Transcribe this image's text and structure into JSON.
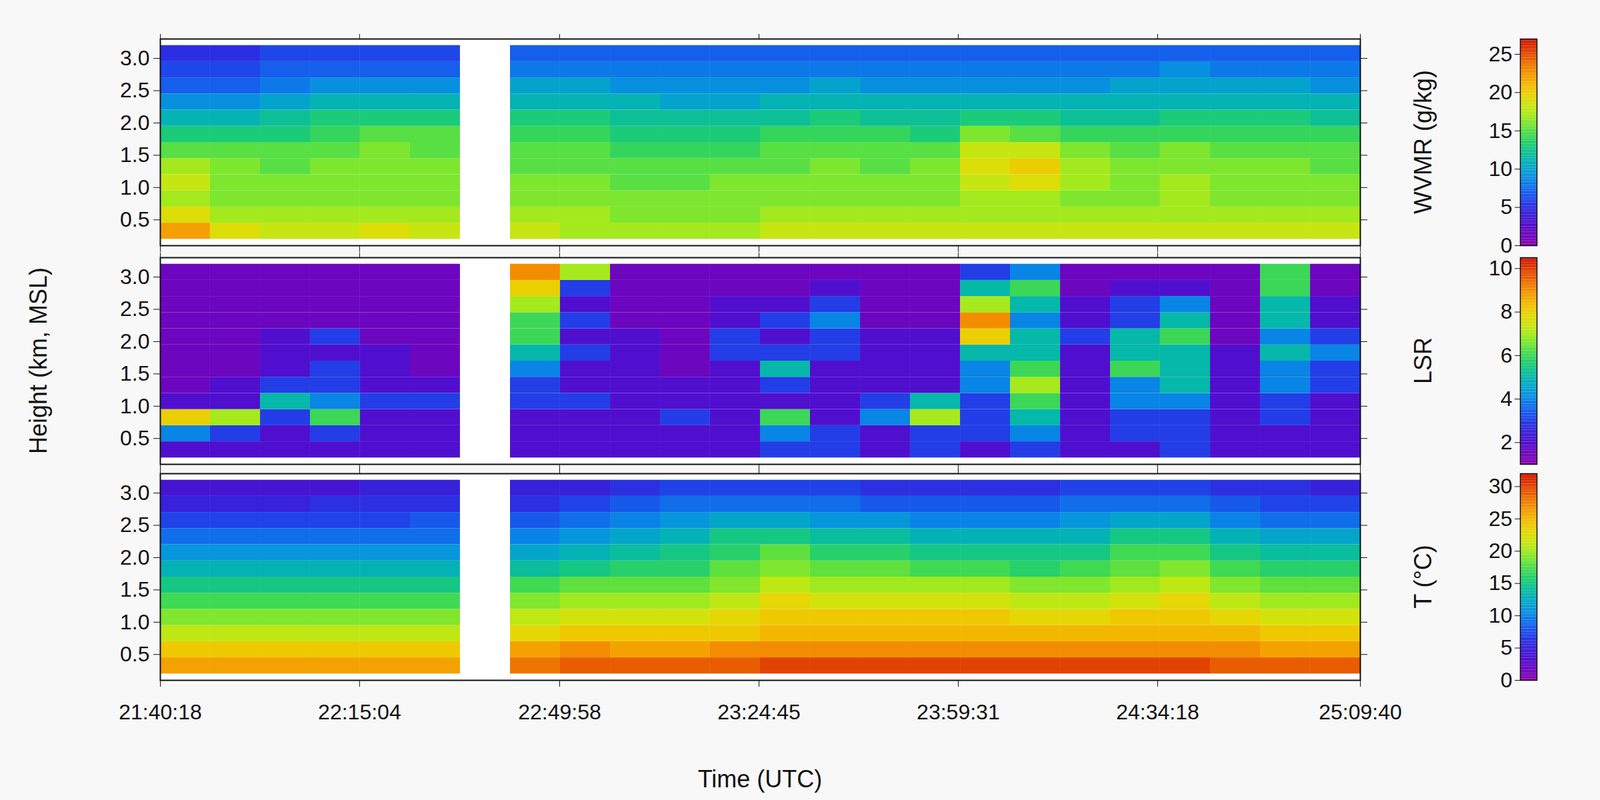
{
  "chart_data": [
    {
      "type": "heatmap",
      "tick_labels": "y",
      "xlim": [
        78018,
        90580
      ],
      "xticks": [
        {
          "value": 78018,
          "label": "21:40:18"
        },
        {
          "value": 80104,
          "label": "22:15:04"
        },
        {
          "value": 82198,
          "label": "22:49:58"
        },
        {
          "value": 84285,
          "label": "23:24:45"
        },
        {
          "value": 86371,
          "label": "23:59:31"
        },
        {
          "value": 88458,
          "label": "24:34:18"
        },
        {
          "value": 90580,
          "label": "25:09:40"
        }
      ],
      "ylim": [
        0.1,
        3.3
      ],
      "yticks": [
        0.5,
        {
          "value": 1,
          "label": "1.0"
        },
        1.5,
        {
          "value": 2,
          "label": "2.0"
        },
        2.5,
        {
          "value": 3,
          "label": "3.0"
        }
      ],
      "x_edges": [
        78018,
        78541,
        79065,
        79588,
        80111,
        80635,
        81158,
        81682,
        82205,
        82729,
        83252,
        83775,
        84299,
        84822,
        85346,
        85869,
        86393,
        86916,
        87440,
        87963,
        88486,
        89010,
        89533,
        90057,
        90580
      ],
      "y_edges": [
        0.2,
        0.45,
        0.7,
        0.95,
        1.2,
        1.45,
        1.7,
        1.95,
        2.2,
        2.45,
        2.7,
        2.95,
        3.2
      ],
      "cells": [
        [
          22,
          19,
          17,
          18,
          17,
          15,
          13,
          11,
          9,
          7,
          6,
          5
        ],
        [
          19,
          17,
          16,
          16,
          16,
          15,
          13,
          11,
          9,
          7,
          6,
          5
        ],
        [
          18,
          17,
          16,
          16,
          15,
          15,
          13,
          12,
          10,
          8,
          7,
          6
        ],
        [
          18,
          17,
          16,
          16,
          16,
          15,
          14,
          13,
          11,
          9,
          7,
          6
        ],
        [
          19,
          17,
          16,
          16,
          16,
          16,
          15,
          13,
          11,
          9,
          7,
          6
        ],
        [
          18,
          17,
          16,
          16,
          16,
          15,
          15,
          13,
          11,
          9,
          7,
          6
        ],
        [
          null,
          null,
          null,
          null,
          null,
          null,
          null,
          null,
          null,
          null,
          null,
          null
        ],
        [
          18,
          17,
          16,
          16,
          15,
          15,
          14,
          13,
          11,
          10,
          8,
          7
        ],
        [
          17,
          17,
          16,
          16,
          15,
          15,
          14,
          13,
          11,
          10,
          8,
          7
        ],
        [
          17,
          16,
          16,
          15,
          15,
          14,
          13,
          12,
          11,
          9,
          8,
          7
        ],
        [
          17,
          16,
          16,
          15,
          15,
          14,
          13,
          12,
          10,
          9,
          8,
          7
        ],
        [
          17,
          16,
          16,
          16,
          15,
          14,
          13,
          12,
          10,
          9,
          8,
          7
        ],
        [
          18,
          17,
          16,
          16,
          15,
          15,
          14,
          12,
          11,
          9,
          8,
          7
        ],
        [
          18,
          17,
          16,
          16,
          16,
          15,
          14,
          13,
          11,
          10,
          8,
          7
        ],
        [
          18,
          17,
          16,
          16,
          15,
          15,
          14,
          12,
          11,
          9,
          8,
          7
        ],
        [
          18,
          17,
          16,
          16,
          16,
          15,
          13,
          12,
          11,
          9,
          8,
          7
        ],
        [
          18,
          17,
          17,
          18,
          19,
          18,
          16,
          13,
          11,
          9,
          8,
          7
        ],
        [
          18,
          17,
          17,
          19,
          20,
          18,
          15,
          13,
          11,
          9,
          8,
          7
        ],
        [
          18,
          17,
          16,
          17,
          17,
          16,
          14,
          12,
          11,
          9,
          8,
          7
        ],
        [
          18,
          17,
          16,
          16,
          16,
          15,
          14,
          12,
          11,
          10,
          8,
          7
        ],
        [
          18,
          17,
          17,
          17,
          16,
          16,
          14,
          13,
          11,
          10,
          9,
          7
        ],
        [
          18,
          17,
          16,
          16,
          16,
          15,
          14,
          13,
          11,
          10,
          8,
          7
        ],
        [
          18,
          17,
          16,
          16,
          16,
          15,
          14,
          13,
          11,
          10,
          8,
          7
        ],
        [
          18,
          17,
          16,
          16,
          15,
          15,
          14,
          12,
          11,
          9,
          8,
          7
        ]
      ],
      "colorbar": {
        "label": "WVMR (g/kg)",
        "range": [
          0,
          27
        ],
        "ticks": [
          0,
          5,
          10,
          15,
          20,
          25
        ]
      }
    },
    {
      "type": "heatmap",
      "tick_labels": "y",
      "ylabel": "Height (km, MSL)",
      "xlim": [
        78018,
        90580
      ],
      "xticks": [
        {
          "value": 78018,
          "label": "21:40:18"
        },
        {
          "value": 80104,
          "label": "22:15:04"
        },
        {
          "value": 82198,
          "label": "22:49:58"
        },
        {
          "value": 84285,
          "label": "23:24:45"
        },
        {
          "value": 86371,
          "label": "23:59:31"
        },
        {
          "value": 88458,
          "label": "24:34:18"
        },
        {
          "value": 90580,
          "label": "25:09:40"
        }
      ],
      "ylim": [
        0.1,
        3.3
      ],
      "yticks": [
        0.5,
        {
          "value": 1,
          "label": "1.0"
        },
        1.5,
        {
          "value": 2,
          "label": "2.0"
        },
        2.5,
        {
          "value": 3,
          "label": "3.0"
        }
      ],
      "x_edges": [
        78018,
        78541,
        79065,
        79588,
        80111,
        80635,
        81158,
        81682,
        82205,
        82729,
        83252,
        83775,
        84299,
        84822,
        85346,
        85869,
        86393,
        86916,
        87440,
        87963,
        88486,
        89010,
        89533,
        90057,
        90580
      ],
      "y_edges": [
        0.2,
        0.45,
        0.7,
        0.95,
        1.2,
        1.45,
        1.7,
        1.95,
        2.2,
        2.45,
        2.7,
        2.95,
        3.2
      ],
      "cells": [
        [
          2,
          4,
          8,
          2,
          1.5,
          1.5,
          1.5,
          1.5,
          1.5,
          1.5,
          1.5,
          1.5
        ],
        [
          2,
          3,
          7,
          2,
          2,
          1.5,
          1.5,
          1.5,
          1.5,
          1.5,
          1.5,
          1.5
        ],
        [
          2,
          2,
          3,
          5,
          3,
          2,
          2,
          2,
          1.5,
          1.5,
          1.5,
          1.5
        ],
        [
          2,
          3,
          6,
          4,
          3,
          3,
          2,
          3,
          1.5,
          1.5,
          1.5,
          1.5
        ],
        [
          2,
          2,
          2,
          3,
          2,
          2,
          2,
          1.5,
          1.5,
          1.5,
          1.5,
          1.5
        ],
        [
          2,
          2,
          2,
          3,
          2,
          1.5,
          1.5,
          1.5,
          1.5,
          1.5,
          1.5,
          1.5
        ],
        [
          null,
          null,
          null,
          null,
          null,
          null,
          null,
          null,
          null,
          null,
          null,
          null
        ],
        [
          2,
          2,
          2,
          3,
          3,
          4,
          5,
          6,
          6,
          7,
          8,
          9
        ],
        [
          2,
          2,
          2,
          3,
          2,
          2,
          3,
          2,
          3,
          2,
          3,
          7
        ],
        [
          2,
          2,
          2,
          2,
          2,
          2,
          2,
          2,
          1.5,
          1.5,
          1.5,
          1.5
        ],
        [
          2,
          2,
          3,
          2,
          2,
          1.5,
          1.5,
          1.5,
          1.5,
          1.5,
          1.5,
          1.5
        ],
        [
          2,
          2,
          2,
          2,
          2,
          2,
          3,
          3,
          2,
          2,
          1.5,
          1.5
        ],
        [
          3,
          4,
          6,
          2,
          3,
          5,
          3,
          2,
          3,
          2,
          1.5,
          1.5
        ],
        [
          3,
          3,
          2,
          2,
          2,
          2,
          3,
          3,
          4,
          3,
          2,
          1.5
        ],
        [
          2,
          2,
          4,
          3,
          2,
          2,
          2,
          2,
          1.5,
          1.5,
          1.5,
          1.5
        ],
        [
          3,
          3,
          7,
          5,
          2,
          2,
          2,
          2,
          1.5,
          1.5,
          1.5,
          1.5
        ],
        [
          2,
          3,
          3,
          3,
          4,
          4,
          5,
          8,
          9,
          7,
          5,
          3
        ],
        [
          3,
          4,
          5,
          6,
          7,
          6,
          5,
          5,
          4,
          5,
          6,
          4
        ],
        [
          2,
          2,
          2,
          2,
          2,
          2,
          2,
          3,
          2,
          2,
          1.5,
          1.5
        ],
        [
          2,
          3,
          3,
          4,
          4,
          6,
          5,
          5,
          3,
          3,
          2,
          1.5
        ],
        [
          3,
          3,
          3,
          4,
          5,
          5,
          5,
          6,
          5,
          4,
          2,
          1.5
        ],
        [
          2,
          2,
          2,
          2,
          2,
          2,
          2,
          1.5,
          1.5,
          1.5,
          1.5,
          1.5
        ],
        [
          2,
          2,
          3,
          3,
          4,
          4,
          5,
          4,
          5,
          5,
          6,
          6
        ],
        [
          2,
          2,
          2,
          2,
          3,
          3,
          4,
          3,
          2,
          2,
          1.5,
          1.5
        ]
      ],
      "colorbar": {
        "label": "LSR",
        "range": [
          1,
          10.5
        ],
        "ticks": [
          2,
          4,
          6,
          8,
          10
        ]
      }
    },
    {
      "type": "heatmap",
      "xlabel": "Time (UTC)",
      "xlim": [
        78018,
        90580
      ],
      "xticks": [
        {
          "value": 78018,
          "label": "21:40:18"
        },
        {
          "value": 80104,
          "label": "22:15:04"
        },
        {
          "value": 82198,
          "label": "22:49:58"
        },
        {
          "value": 84285,
          "label": "23:24:45"
        },
        {
          "value": 86371,
          "label": "23:59:31"
        },
        {
          "value": 88458,
          "label": "24:34:18"
        },
        {
          "value": 90580,
          "label": "25:09:40"
        }
      ],
      "ylim": [
        0.1,
        3.3
      ],
      "yticks": [
        0.5,
        {
          "value": 1,
          "label": "1.0"
        },
        1.5,
        {
          "value": 2,
          "label": "2.0"
        },
        2.5,
        {
          "value": 3,
          "label": "3.0"
        }
      ],
      "x_edges": [
        78018,
        78541,
        79065,
        79588,
        80111,
        80635,
        81158,
        81682,
        82205,
        82729,
        83252,
        83775,
        84299,
        84822,
        85346,
        85869,
        86393,
        86916,
        87440,
        87963,
        88486,
        89010,
        89533,
        90057,
        90580
      ],
      "y_edges": [
        0.2,
        0.45,
        0.7,
        0.95,
        1.2,
        1.45,
        1.7,
        1.95,
        2.2,
        2.45,
        2.7,
        2.95,
        3.2
      ],
      "cells": [
        [
          26,
          24,
          21,
          19,
          17,
          15,
          13,
          11,
          9,
          7,
          5,
          4
        ],
        [
          26,
          24,
          21,
          19,
          17,
          15,
          13,
          11,
          9,
          7,
          5,
          4
        ],
        [
          26,
          24,
          21,
          19,
          17,
          15,
          13,
          11,
          9,
          7,
          5,
          4
        ],
        [
          26,
          24,
          21,
          19,
          17,
          15,
          13,
          11,
          9,
          7,
          6,
          4
        ],
        [
          26,
          24,
          21,
          19,
          17,
          15,
          13,
          11,
          9,
          7,
          6,
          5
        ],
        [
          26,
          24,
          21,
          19,
          17,
          15,
          13,
          11,
          9,
          8,
          6,
          5
        ],
        [
          null,
          null,
          null,
          null,
          null,
          null,
          null,
          null,
          null,
          null,
          null,
          null
        ],
        [
          28,
          26,
          23,
          21,
          19,
          17,
          14,
          12,
          10,
          8,
          6,
          5
        ],
        [
          29,
          27,
          24,
          22,
          20,
          18,
          15,
          13,
          11,
          9,
          7,
          5
        ],
        [
          29,
          26,
          24,
          22,
          20,
          18,
          16,
          14,
          12,
          10,
          8,
          6
        ],
        [
          29,
          26,
          24,
          22,
          20,
          18,
          16,
          15,
          13,
          11,
          9,
          7
        ],
        [
          29,
          27,
          24,
          23,
          21,
          19,
          18,
          16,
          15,
          12,
          9,
          7
        ],
        [
          30,
          27,
          25,
          24,
          23,
          21,
          19,
          18,
          15,
          12,
          9,
          7
        ],
        [
          30,
          27,
          25,
          24,
          22,
          20,
          18,
          16,
          14,
          11,
          9,
          7
        ],
        [
          30,
          27,
          25,
          24,
          22,
          20,
          18,
          16,
          14,
          11,
          8,
          6
        ],
        [
          30,
          27,
          25,
          24,
          22,
          20,
          17,
          15,
          13,
          10,
          8,
          6
        ],
        [
          30,
          27,
          25,
          24,
          22,
          20,
          17,
          15,
          13,
          10,
          8,
          6
        ],
        [
          30,
          27,
          25,
          23,
          21,
          19,
          16,
          15,
          13,
          10,
          8,
          6
        ],
        [
          30,
          27,
          25,
          23,
          21,
          19,
          17,
          15,
          13,
          11,
          9,
          7
        ],
        [
          30,
          27,
          25,
          24,
          22,
          20,
          18,
          17,
          15,
          12,
          9,
          7
        ],
        [
          30,
          27,
          25,
          24,
          23,
          21,
          19,
          17,
          15,
          12,
          9,
          7
        ],
        [
          29,
          27,
          25,
          23,
          21,
          19,
          17,
          15,
          13,
          10,
          8,
          6
        ],
        [
          29,
          26,
          24,
          22,
          20,
          18,
          16,
          14,
          12,
          9,
          7,
          6
        ],
        [
          29,
          26,
          24,
          22,
          20,
          18,
          16,
          14,
          12,
          9,
          7,
          5
        ]
      ],
      "colorbar": {
        "label": "T (°C)",
        "range": [
          0,
          32
        ],
        "ticks": [
          0,
          5,
          10,
          15,
          20,
          25,
          30
        ]
      }
    }
  ]
}
